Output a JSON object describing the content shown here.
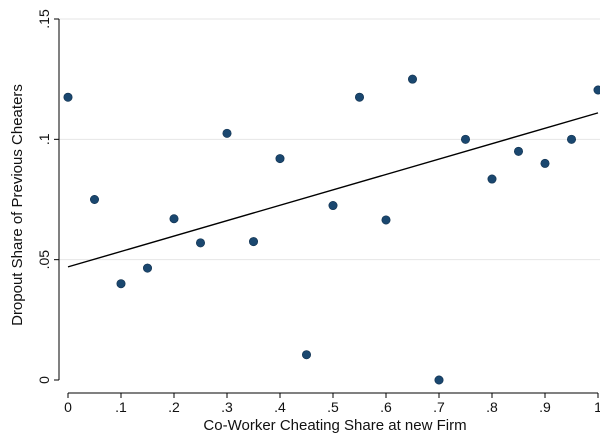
{
  "chart_data": {
    "type": "scatter",
    "xlabel": "Co-Worker Cheating Share at new Firm",
    "ylabel": "Dropout Share of Previous Cheaters",
    "xlim": [
      0,
      1
    ],
    "ylim": [
      0,
      0.15
    ],
    "x_ticks": [
      0,
      0.1,
      0.2,
      0.3,
      0.4,
      0.5,
      0.6,
      0.7,
      0.8,
      0.9,
      1
    ],
    "x_tick_labels": [
      "0",
      ".1",
      ".2",
      ".3",
      ".4",
      ".5",
      ".6",
      ".7",
      ".8",
      ".9",
      "1"
    ],
    "y_ticks": [
      0,
      0.05,
      0.1,
      0.15
    ],
    "y_tick_labels": [
      "0",
      ".05",
      ".1",
      ".15"
    ],
    "grid": "horizontal",
    "point_color": "#1a476f",
    "fit_line_color": "#000000",
    "points": [
      {
        "x": 0,
        "y": 0.1175
      },
      {
        "x": 0.05,
        "y": 0.075
      },
      {
        "x": 0.1,
        "y": 0.04
      },
      {
        "x": 0.15,
        "y": 0.0465
      },
      {
        "x": 0.2,
        "y": 0.067
      },
      {
        "x": 0.25,
        "y": 0.057
      },
      {
        "x": 0.3,
        "y": 0.1025
      },
      {
        "x": 0.35,
        "y": 0.0575
      },
      {
        "x": 0.4,
        "y": 0.092
      },
      {
        "x": 0.45,
        "y": 0.0105
      },
      {
        "x": 0.5,
        "y": 0.0725
      },
      {
        "x": 0.55,
        "y": 0.1175
      },
      {
        "x": 0.6,
        "y": 0.0665
      },
      {
        "x": 0.65,
        "y": 0.125
      },
      {
        "x": 0.7,
        "y": 0
      },
      {
        "x": 0.75,
        "y": 0.1
      },
      {
        "x": 0.8,
        "y": 0.0835
      },
      {
        "x": 0.85,
        "y": 0.095
      },
      {
        "x": 0.9,
        "y": 0.09
      },
      {
        "x": 0.95,
        "y": 0.1
      },
      {
        "x": 1,
        "y": 0.1205
      }
    ],
    "fit_line": {
      "x": [
        0,
        1
      ],
      "y": [
        0.047,
        0.111
      ]
    }
  }
}
